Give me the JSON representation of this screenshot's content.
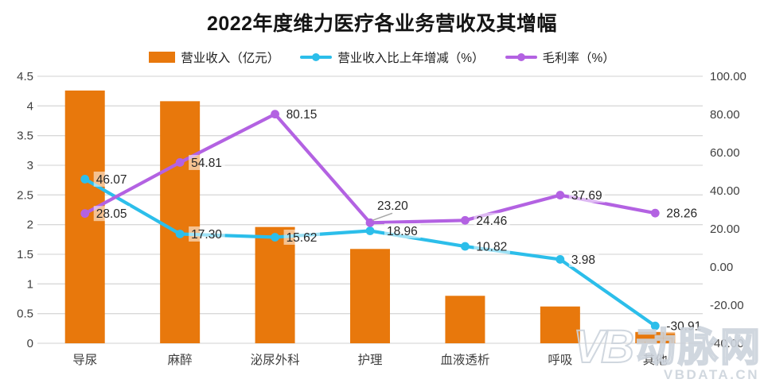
{
  "chart_data": {
    "type": "combo-bar-line",
    "title": "2022年度维力医疗各业务营收及其增幅",
    "categories": [
      "导尿",
      "麻醉",
      "泌尿外科",
      "护理",
      "血液透析",
      "呼吸",
      "其他"
    ],
    "series": [
      {
        "name": "营业收入（亿元）",
        "type": "bar",
        "axis": "left",
        "color": "#E8780C",
        "values": [
          4.26,
          4.08,
          1.96,
          1.59,
          0.8,
          0.62,
          0.19
        ],
        "data_labels_shown": false
      },
      {
        "name": "营业收入比上年增减（%）",
        "type": "line",
        "axis": "right",
        "color": "#2CBEEA",
        "values": [
          46.07,
          17.3,
          15.62,
          18.96,
          10.82,
          3.98,
          -30.91
        ],
        "data_labels_shown": true
      },
      {
        "name": "毛利率（%）",
        "type": "line",
        "axis": "right",
        "color": "#B362E2",
        "values": [
          28.05,
          54.81,
          80.15,
          23.2,
          24.46,
          37.69,
          28.26
        ],
        "data_labels_shown": true
      }
    ],
    "left_axis": {
      "min": 0,
      "max": 4.5,
      "step": 0.5,
      "ticks": [
        "4.5",
        "4",
        "3.5",
        "3",
        "2.5",
        "2",
        "1.5",
        "1",
        "0.5",
        "0"
      ]
    },
    "right_axis": {
      "min": -40,
      "max": 100,
      "step": 20,
      "ticks": [
        "100.00",
        "80.00",
        "60.00",
        "40.00",
        "20.00",
        "0.00",
        "-20.00",
        "-40.00"
      ]
    },
    "grid": "horizontal-only",
    "legend_position": "top"
  },
  "colors": {
    "grid": "#D9D9D9",
    "axis_text": "#3F3F3F",
    "label_text": "#262626",
    "label_backdrop": "rgba(255,255,255,0.55)",
    "leader_line": "#A6A6A6"
  },
  "watermark": {
    "logo": "VB",
    "brand": "动脉网",
    "url": "VBDATA.CN"
  }
}
